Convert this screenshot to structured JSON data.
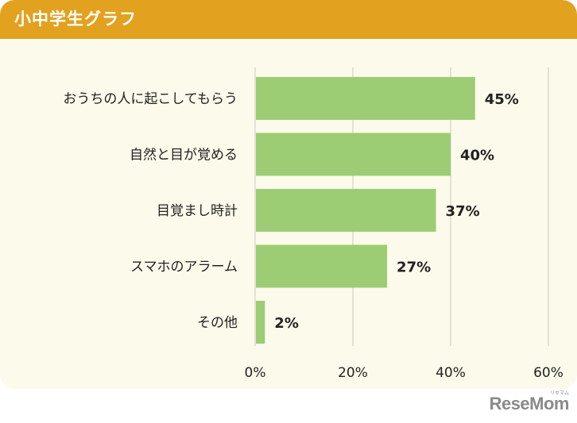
{
  "header": {
    "title": "小中学生グラフ"
  },
  "logo": {
    "text": "ReseMom",
    "kana": "リセマム"
  },
  "colors": {
    "bar": "#9ccd74",
    "header": "#e2a11e",
    "background": "#fcfaea",
    "grid": "#d9d9d0",
    "text": "#222222"
  },
  "chart_data": {
    "type": "bar",
    "orientation": "horizontal",
    "categories": [
      "おうちの人に起こしてもらう",
      "自然と目が覚める",
      "目覚まし時計",
      "スマホのアラーム",
      "その他"
    ],
    "values": [
      45,
      40,
      37,
      27,
      2
    ],
    "value_labels": [
      "45%",
      "40%",
      "37%",
      "27%",
      "2%"
    ],
    "xlim": [
      0,
      60
    ],
    "x_ticks": [
      0,
      20,
      40,
      60
    ],
    "x_tick_labels": [
      "0%",
      "20%",
      "40%",
      "60%"
    ],
    "grid": true
  }
}
